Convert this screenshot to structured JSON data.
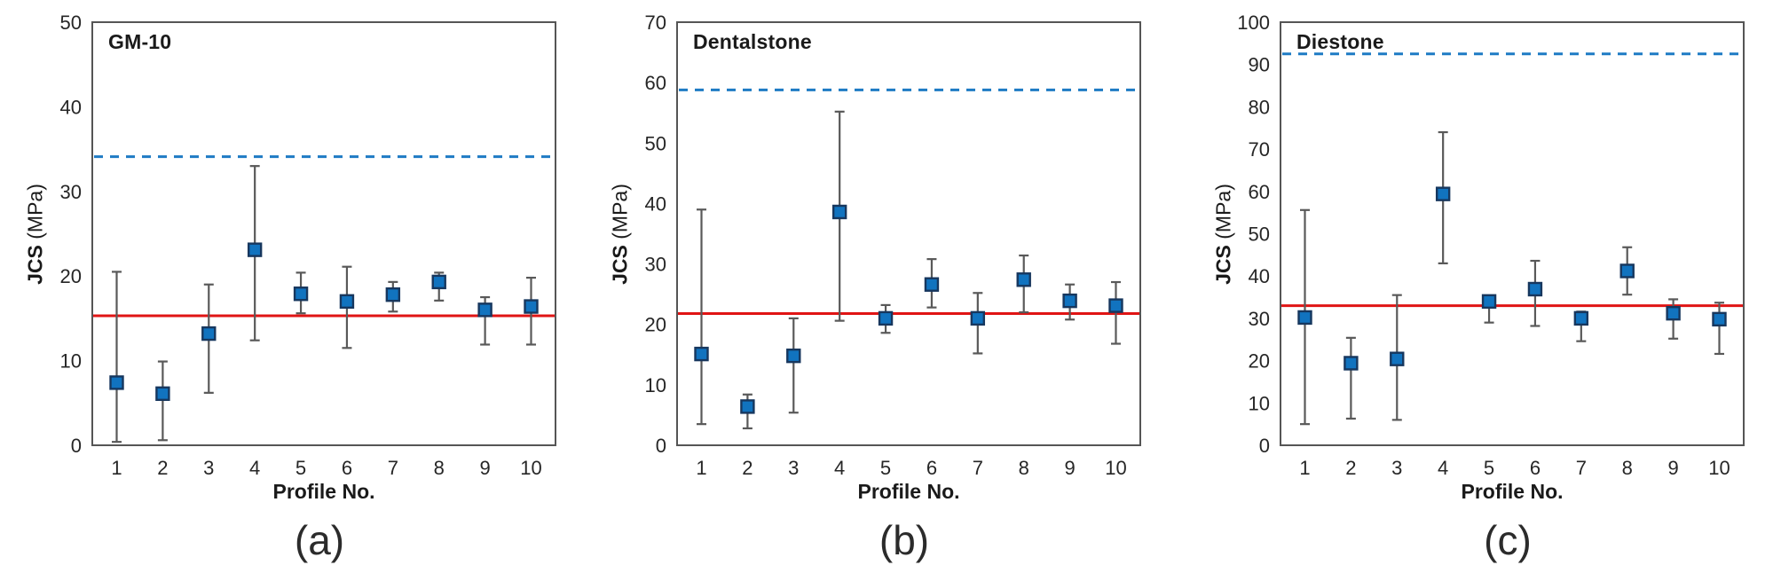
{
  "style": {
    "marker_fill": "#1173bf",
    "marker_border": "#17375e",
    "error_bar_color": "#595959",
    "mean_line_color": "#e01414",
    "dashed_line_color": "#1e7bc4",
    "box_border_color": "#555555",
    "text_color": "#262626"
  },
  "chart_data": [
    {
      "type": "scatter",
      "title": "GM-10",
      "caption": "(a)",
      "xlabel": "Profile No.",
      "ylabel_bold": "JCS",
      "ylabel_units": " (MPa)",
      "x": [
        1,
        2,
        3,
        4,
        5,
        6,
        7,
        8,
        9,
        10
      ],
      "y": [
        7.4,
        6.1,
        13.2,
        23.1,
        17.9,
        17.0,
        17.8,
        19.3,
        16.0,
        16.4
      ],
      "err_low": [
        0.4,
        0.6,
        6.2,
        12.4,
        15.6,
        11.5,
        15.8,
        17.1,
        11.9,
        11.9
      ],
      "err_high": [
        20.5,
        9.9,
        19.0,
        33.0,
        20.4,
        21.1,
        19.3,
        20.4,
        17.5,
        19.8
      ],
      "mean_line": 15.3,
      "reference_dashed_line": 34.1,
      "ylim": [
        0,
        50
      ],
      "ytick_step": 10,
      "grid": false,
      "legend": "none"
    },
    {
      "type": "scatter",
      "title": "Dentalstone",
      "caption": "(b)",
      "xlabel": "Profile No.",
      "ylabel_bold": "JCS",
      "ylabel_units": " (MPa)",
      "x": [
        1,
        2,
        3,
        4,
        5,
        6,
        7,
        8,
        9,
        10
      ],
      "y": [
        15.1,
        6.4,
        14.8,
        38.6,
        21.0,
        26.6,
        21.0,
        27.4,
        23.9,
        23.1
      ],
      "err_low": [
        3.5,
        2.8,
        5.4,
        20.6,
        18.6,
        22.8,
        15.2,
        22.0,
        20.8,
        16.8
      ],
      "err_high": [
        39.0,
        8.4,
        21.0,
        55.2,
        23.2,
        30.8,
        25.2,
        31.4,
        26.6,
        27.0
      ],
      "mean_line": 21.8,
      "reference_dashed_line": 58.8,
      "ylim": [
        0,
        70
      ],
      "ytick_step": 10,
      "grid": false,
      "legend": "none"
    },
    {
      "type": "scatter",
      "title": "Diestone",
      "caption": "(c)",
      "xlabel": "Profile No.",
      "ylabel_bold": "JCS",
      "ylabel_units": " (MPa)",
      "x": [
        1,
        2,
        3,
        4,
        5,
        6,
        7,
        8,
        9,
        10
      ],
      "y": [
        30.2,
        19.4,
        20.4,
        59.4,
        34.0,
        36.9,
        30.0,
        41.2,
        31.2,
        29.8
      ],
      "err_low": [
        5.0,
        6.3,
        6.0,
        43.0,
        29.0,
        28.2,
        24.6,
        35.6,
        25.2,
        21.6
      ],
      "err_high": [
        55.6,
        25.4,
        35.5,
        74.0,
        35.3,
        43.6,
        31.6,
        46.8,
        34.5,
        33.7
      ],
      "mean_line": 33.0,
      "reference_dashed_line": 92.5,
      "ylim": [
        0,
        100
      ],
      "ytick_step": 10,
      "grid": false,
      "legend": "none"
    }
  ]
}
